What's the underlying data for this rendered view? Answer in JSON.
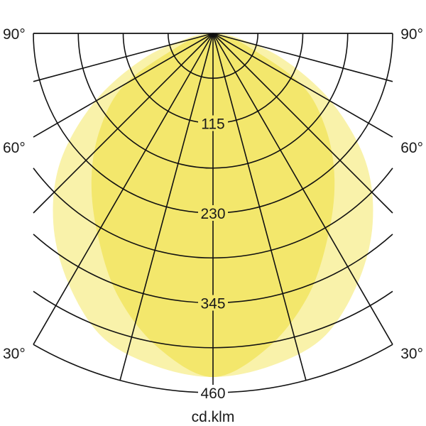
{
  "chart_data": {
    "type": "polar",
    "unit_label": "cd.klm",
    "radial_max": 460,
    "radial_gridlines": [
      57.5,
      115,
      172.5,
      230,
      287.5,
      345,
      402.5,
      460
    ],
    "radial_tick_labels": [
      "115",
      "230",
      "345",
      "460"
    ],
    "angle_gridlines_deg": [
      0,
      15,
      30,
      45,
      60,
      75,
      90
    ],
    "angle_tick_labels": [
      "90°",
      "60°",
      "30°"
    ],
    "angle_tick_values": [
      90,
      60,
      30
    ],
    "symmetric": true,
    "grid": true,
    "series": [
      {
        "color": "#f9f2aa",
        "angles_deg": [
          0,
          10,
          20,
          30,
          40,
          50,
          60,
          70,
          80,
          90
        ],
        "values": [
          440,
          432,
          414,
          370,
          318,
          255,
          175,
          95,
          30,
          0
        ]
      },
      {
        "color": "#f3e76c",
        "angles_deg": [
          0,
          10,
          20,
          30,
          40,
          50,
          60,
          70,
          80,
          90
        ],
        "values": [
          440,
          408,
          357,
          296,
          242,
          188,
          130,
          45,
          10,
          0
        ]
      }
    ]
  }
}
